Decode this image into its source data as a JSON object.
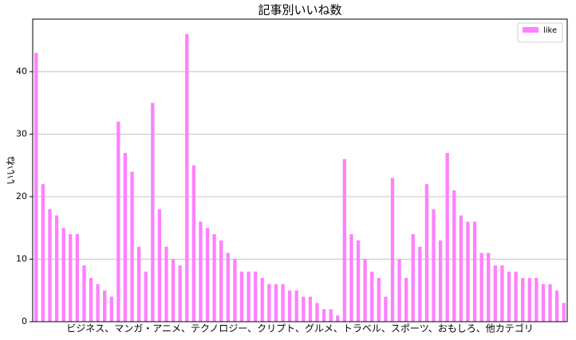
{
  "chart_data": {
    "type": "bar",
    "title": "記事別いいね数",
    "xlabel": "ビジネス、マンガ・アニメ、テクノロジー、クリプト、グルメ、トラベル、スポーツ、おもしろ、他カテゴリ",
    "ylabel": "いいね",
    "categories": [
      null,
      null,
      null,
      null,
      null,
      null,
      null,
      null,
      null,
      null,
      null,
      null,
      null,
      null,
      null,
      null,
      null,
      null,
      null,
      null,
      null,
      null,
      null,
      null,
      null,
      null,
      null,
      null,
      null,
      null,
      null,
      null,
      null,
      null,
      null,
      null,
      null,
      null,
      null,
      null,
      null,
      null,
      null,
      null,
      null,
      null,
      null,
      null,
      null,
      null,
      null,
      null,
      null,
      null,
      null,
      null,
      null,
      null,
      null,
      null,
      null,
      null,
      null,
      null,
      null,
      null,
      null,
      null,
      null,
      null,
      null,
      null,
      null,
      null,
      null,
      null,
      null,
      null
    ],
    "series": [
      {
        "name": "like",
        "color": "#ff80ff",
        "values": [
          43,
          22,
          18,
          17,
          15,
          14,
          14,
          9,
          7,
          6,
          5,
          4,
          32,
          27,
          24,
          12,
          8,
          35,
          18,
          12,
          10,
          9,
          46,
          25,
          16,
          15,
          14,
          13,
          11,
          10,
          8,
          8,
          8,
          7,
          6,
          6,
          6,
          5,
          5,
          4,
          4,
          3,
          2,
          2,
          1,
          26,
          14,
          13,
          10,
          8,
          7,
          4,
          23,
          10,
          7,
          14,
          12,
          22,
          18,
          13,
          27,
          21,
          17,
          16,
          16,
          11,
          11,
          9,
          9,
          8,
          8,
          7,
          7,
          7,
          6,
          6,
          5,
          3
        ]
      }
    ],
    "ylim": [
      0,
      48.4
    ],
    "yticks": [
      0,
      10,
      20,
      30,
      40
    ],
    "grid": true,
    "legend": "upper right"
  }
}
